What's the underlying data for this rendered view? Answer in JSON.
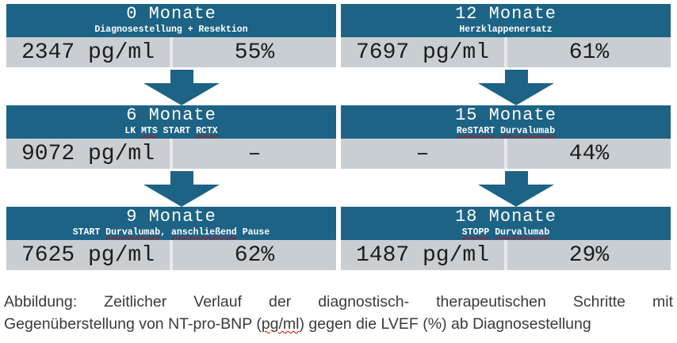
{
  "theme": {
    "teal": "#1d6385",
    "row-gray": "#c9ced2",
    "cell-divider": "#e7e9eb",
    "value-text": "#1c1c1c",
    "header-text": "#ffffff",
    "caption-text": "#3a3a3a",
    "squiggle-red": "#e00000",
    "background": "#ffffff"
  },
  "boxes": [
    {
      "title": "0 Monate",
      "subtitle_segments": [
        {
          "text": "Diagnosestellung + Resektion",
          "squiggle": false
        }
      ],
      "ntprobnp": "2347 pg/ml",
      "lvef": "55%"
    },
    {
      "title": "12 Monate",
      "subtitle_segments": [
        {
          "text": "Herzklappenersatz",
          "squiggle": false
        }
      ],
      "ntprobnp": "7697 pg/ml",
      "lvef": "61%"
    },
    {
      "title": "6 Monate",
      "subtitle_segments": [
        {
          "text": "LK ",
          "squiggle": false
        },
        {
          "text": "MTS",
          "squiggle": true
        },
        {
          "text": " START ",
          "squiggle": false
        },
        {
          "text": "RCTX",
          "squiggle": true
        }
      ],
      "ntprobnp": "9072 pg/ml",
      "lvef": "–"
    },
    {
      "title": "15 Monate",
      "subtitle_segments": [
        {
          "text": "ReSTART",
          "squiggle": true
        },
        {
          "text": " ",
          "squiggle": false
        },
        {
          "text": "Durvalumab",
          "squiggle": true
        }
      ],
      "ntprobnp": "–",
      "lvef": "44%"
    },
    {
      "title": "9 Monate",
      "subtitle_segments": [
        {
          "text": "START ",
          "squiggle": false
        },
        {
          "text": "Durvalumab",
          "squiggle": true
        },
        {
          "text": ", ",
          "squiggle": false
        },
        {
          "text": "anschließend",
          "squiggle": true
        },
        {
          "text": " Pause",
          "squiggle": false
        }
      ],
      "ntprobnp": "7625 pg/ml",
      "lvef": "62%"
    },
    {
      "title": "18 Monate",
      "subtitle_segments": [
        {
          "text": "STOPP",
          "squiggle": true
        },
        {
          "text": " ",
          "squiggle": false
        },
        {
          "text": "Durvalumab",
          "squiggle": true
        }
      ],
      "ntprobnp": "1487 pg/ml",
      "lvef": "29%"
    }
  ],
  "caption": {
    "line1": "Abbildung: Zeitlicher Verlauf der diagnostisch- therapeutischen Schritte mit",
    "line2_pre": "Gegenüberstellung von NT-pro-BNP (",
    "line2_misspelled": "pg/ml",
    "line2_post": ") gegen die LVEF (%) ab Diagnosestellung"
  }
}
